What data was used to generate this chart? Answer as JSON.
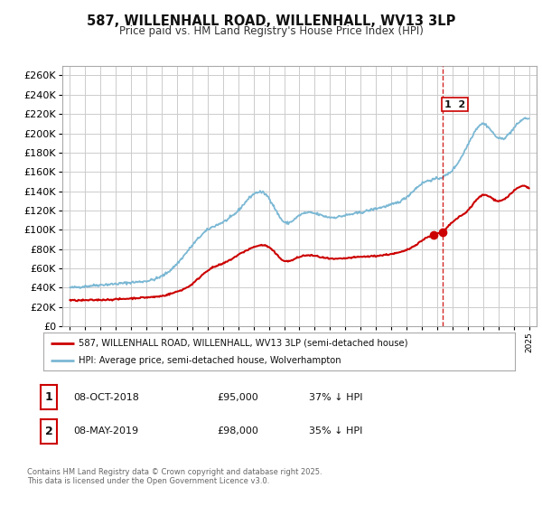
{
  "title": "587, WILLENHALL ROAD, WILLENHALL, WV13 3LP",
  "subtitle": "Price paid vs. HM Land Registry's House Price Index (HPI)",
  "ylim": [
    0,
    270000
  ],
  "yticks": [
    0,
    20000,
    40000,
    60000,
    80000,
    100000,
    120000,
    140000,
    160000,
    180000,
    200000,
    220000,
    240000,
    260000
  ],
  "xlim_start": 1994.5,
  "xlim_end": 2025.5,
  "hpi_color": "#7bb8d4",
  "price_color": "#cc0000",
  "dot_color": "#cc0000",
  "vline_color": "#cc0000",
  "grid_color": "#cccccc",
  "bg_color": "#ffffff",
  "legend_line1": "587, WILLENHALL ROAD, WILLENHALL, WV13 3LP (semi-detached house)",
  "legend_line2": "HPI: Average price, semi-detached house, Wolverhampton",
  "annotation1_date": "08-OCT-2018",
  "annotation1_price": "£95,000",
  "annotation1_hpi": "37% ↓ HPI",
  "annotation2_date": "08-MAY-2019",
  "annotation2_price": "£98,000",
  "annotation2_hpi": "35% ↓ HPI",
  "footnote": "Contains HM Land Registry data © Crown copyright and database right 2025.\nThis data is licensed under the Open Government Licence v3.0.",
  "vline_x": 2019.35,
  "dot1_x": 2018.77,
  "dot1_y": 95000,
  "dot2_x": 2019.35,
  "dot2_y": 98000,
  "hpi_years": [
    1995,
    1996,
    1997,
    1998,
    1999,
    2000,
    2001,
    2002,
    2003,
    2004,
    2005,
    2006,
    2007,
    2008,
    2009,
    2010,
    2011,
    2012,
    2013,
    2014,
    2015,
    2016,
    2017,
    2018,
    2019,
    2020,
    2021,
    2022,
    2023,
    2024,
    2025
  ],
  "hpi_vals": [
    40000,
    41500,
    43000,
    44000,
    45500,
    47000,
    52000,
    65000,
    84000,
    100000,
    108000,
    120000,
    137000,
    133000,
    108000,
    115000,
    117000,
    113000,
    115000,
    118000,
    122000,
    126000,
    134000,
    148000,
    153000,
    162000,
    188000,
    210000,
    195000,
    205000,
    215000
  ],
  "price_years": [
    1995,
    1996,
    1997,
    1998,
    1999,
    2000,
    2001,
    2002,
    2003,
    2004,
    2005,
    2006,
    2007,
    2008,
    2009,
    2010,
    2011,
    2012,
    2013,
    2014,
    2015,
    2016,
    2017,
    2018.77,
    2019.35,
    2020,
    2021,
    2022,
    2023,
    2024,
    2025
  ],
  "price_vals": [
    27000,
    27000,
    27500,
    28000,
    29000,
    30000,
    31500,
    36000,
    44000,
    58000,
    65000,
    74000,
    82000,
    82000,
    68000,
    72000,
    73000,
    70000,
    70500,
    72000,
    73000,
    75000,
    79000,
    95000,
    98000,
    108000,
    120000,
    136000,
    130000,
    140000,
    143000
  ]
}
